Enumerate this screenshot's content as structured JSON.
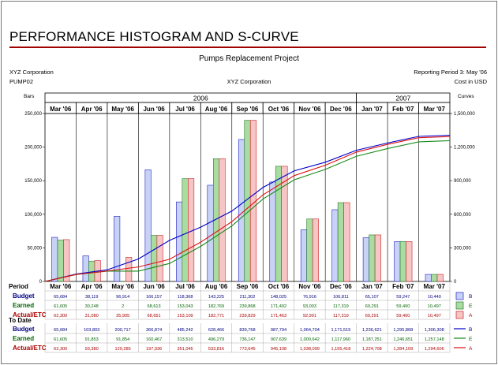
{
  "header": {
    "title": "PERFORMANCE HISTOGRAM AND S-CURVE",
    "project": "Pumps Replacement Project",
    "company_left": "XYZ Corporation",
    "project_code": "PUMP02",
    "company_center": "XYZ Corporation",
    "reporting_period": "Reporting Period 3:  May '06",
    "currency": "Cost in USD"
  },
  "chart_data": {
    "type": "bar",
    "left_axis_label": "Bars",
    "right_axis_label": "Curves",
    "years": [
      {
        "label": "2006",
        "span": 10
      },
      {
        "label": "2007",
        "span": 3
      }
    ],
    "categories": [
      "Mar '06",
      "Apr '06",
      "May '06",
      "Jun '06",
      "Jul '06",
      "Aug '06",
      "Sep '06",
      "Oct '06",
      "Nov '06",
      "Dec '06",
      "Jan '07",
      "Feb '07",
      "Mar '07"
    ],
    "ylim_bars": [
      0,
      250000
    ],
    "yticks_bars": [
      "0",
      "50,000",
      "100,000",
      "150,000",
      "200,000",
      "250,000"
    ],
    "ylim_curves": [
      0,
      1500000
    ],
    "yticks_curves": [
      "0",
      "300,000",
      "600,000",
      "900,000",
      "1,200,000",
      "1,500,000"
    ],
    "grid": "vertical",
    "series": [
      {
        "key": "B",
        "fill": "#c8d2f5",
        "stroke": "#2222cc",
        "line": "#0000cc",
        "period": [
          65684,
          38119,
          96914,
          166157,
          118368,
          143225,
          211302,
          148025,
          76916,
          106811,
          65107,
          59247,
          10440
        ],
        "cumulative": [
          65684,
          103803,
          200717,
          366874,
          485242,
          628466,
          839768,
          987794,
          1064704,
          1171515,
          1236621,
          1295868,
          1306308
        ]
      },
      {
        "key": "E",
        "fill": "#a8dca0",
        "stroke": "#2a7a2a",
        "line": "#1a8a1a",
        "period": [
          61605,
          30248,
          2,
          68613,
          153043,
          182769,
          239868,
          171492,
          93003,
          117319,
          69291,
          59400,
          10497
        ],
        "cumulative": [
          61605,
          91853,
          91854,
          160467,
          313510,
          496279,
          736147,
          907639,
          1000642,
          1117960,
          1187251,
          1246651,
          1257148
        ]
      },
      {
        "key": "A",
        "fill": "#f6c6c6",
        "stroke": "#cc2222",
        "line": "#dd1111",
        "period": [
          62300,
          31080,
          35905,
          68651,
          153109,
          182771,
          239829,
          171463,
          92991,
          117319,
          69291,
          59400,
          10497
        ],
        "cumulative": [
          62300,
          93380,
          129285,
          197936,
          351045,
          533816,
          773645,
          945108,
          1038099,
          1155418,
          1224708,
          1284109,
          1294606
        ]
      }
    ],
    "period_rows": {
      "section_label": "Period",
      "labels": [
        "Budget",
        "Earned",
        "Actual/ETC"
      ],
      "values": [
        [
          "65,684",
          "38,119",
          "96,914",
          "166,157",
          "118,368",
          "143,225",
          "211,302",
          "148,025",
          "76,916",
          "106,811",
          "65,107",
          "59,247",
          "10,440"
        ],
        [
          "61,605",
          "30,248",
          "2",
          "68,613",
          "153,043",
          "182,769",
          "239,868",
          "171,492",
          "93,003",
          "117,319",
          "69,291",
          "59,400",
          "10,497"
        ],
        [
          "62,300",
          "31,080",
          "35,905",
          "68,651",
          "153,109",
          "182,771",
          "239,829",
          "171,463",
          "92,991",
          "117,319",
          "69,291",
          "59,400",
          "10,497"
        ]
      ]
    },
    "todate_rows": {
      "section_label": "To Date",
      "labels": [
        "Budget",
        "Earned",
        "Actual/ETC"
      ],
      "values": [
        [
          "65,684",
          "103,803",
          "200,717",
          "366,874",
          "485,242",
          "628,466",
          "839,768",
          "987,794",
          "1,064,704",
          "1,171,515",
          "1,236,621",
          "1,295,868",
          "1,306,308"
        ],
        [
          "61,605",
          "91,853",
          "91,854",
          "160,467",
          "313,510",
          "496,279",
          "736,147",
          "907,639",
          "1,000,642",
          "1,117,960",
          "1,187,251",
          "1,246,651",
          "1,257,148"
        ],
        [
          "62,300",
          "93,380",
          "129,285",
          "197,936",
          "351,045",
          "533,816",
          "773,645",
          "945,108",
          "1,038,099",
          "1,155,418",
          "1,224,708",
          "1,284,109",
          "1,294,606"
        ]
      ]
    },
    "row_colors": [
      "#000080",
      "#006400",
      "#aa0000"
    ],
    "legend_keys": [
      "B",
      "E",
      "A"
    ]
  }
}
